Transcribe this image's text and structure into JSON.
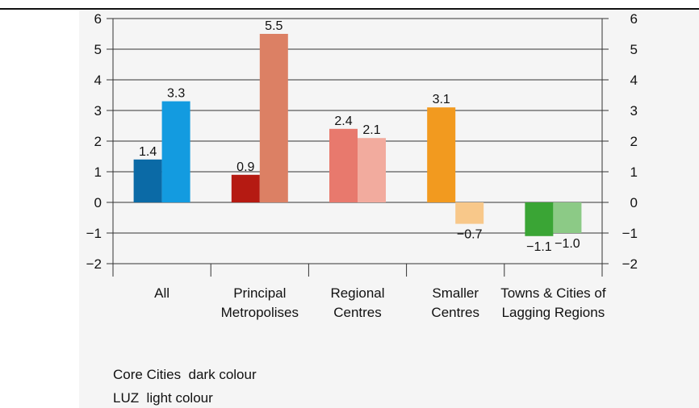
{
  "chart_data": {
    "type": "bar",
    "categories": [
      [
        "All"
      ],
      [
        "Principal",
        "Metropolises"
      ],
      [
        "Regional",
        "Centres"
      ],
      [
        "Smaller",
        "Centres"
      ],
      [
        "Towns & Cities of",
        "Lagging Regions"
      ]
    ],
    "series": [
      {
        "values": [
          1.4,
          0.9,
          2.4,
          3.1,
          -1.1
        ],
        "labels": [
          "1.4",
          "0.9",
          "2.4",
          "3.1",
          "−1.1"
        ]
      },
      {
        "values": [
          3.3,
          5.5,
          2.1,
          -0.7,
          -1.0
        ],
        "labels": [
          "3.3",
          "5.5",
          "2.1",
          "−0.7",
          "−1.0"
        ]
      }
    ],
    "colors": [
      [
        "#0b6aa6",
        "#139be0"
      ],
      [
        "#b51a12",
        "#dc8064"
      ],
      [
        "#e8796d",
        "#f2ab9e"
      ],
      [
        "#f29a1f",
        "#f8c88a"
      ],
      [
        "#3aa535",
        "#8cca86"
      ]
    ],
    "yticks": [
      -2,
      -1,
      0,
      1,
      2,
      3,
      4,
      5,
      6
    ],
    "ytick_labels": [
      "−2",
      "−1",
      "0",
      "1",
      "2",
      "3",
      "4",
      "5",
      "6"
    ],
    "ylim": [
      -2,
      6
    ],
    "grid": true,
    "legend": [
      "Core Cities  dark colour",
      "LUZ  light colour"
    ]
  }
}
